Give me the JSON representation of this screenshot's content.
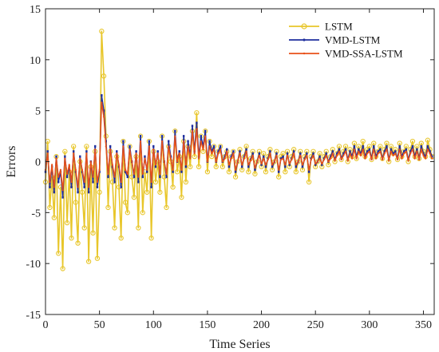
{
  "chart_data": {
    "type": "line",
    "title": "",
    "xlabel": "Time Series",
    "ylabel": "Errors",
    "xlim": [
      0,
      360
    ],
    "ylim": [
      -15,
      15
    ],
    "xticks": [
      0,
      50,
      100,
      150,
      200,
      250,
      300,
      350
    ],
    "yticks": [
      -15,
      -10,
      -5,
      0,
      5,
      10,
      15
    ],
    "grid": false,
    "legend": "top-right",
    "series": [
      {
        "name": "LSTM",
        "color": "#E8C62A",
        "marker": "circle",
        "x": [
          0,
          2,
          4,
          6,
          8,
          10,
          12,
          14,
          16,
          18,
          20,
          22,
          24,
          26,
          28,
          30,
          32,
          34,
          36,
          38,
          40,
          42,
          44,
          46,
          48,
          50,
          52,
          54,
          56,
          58,
          60,
          62,
          64,
          66,
          68,
          70,
          72,
          74,
          76,
          78,
          80,
          82,
          84,
          86,
          88,
          90,
          92,
          94,
          96,
          98,
          100,
          102,
          104,
          106,
          108,
          110,
          112,
          114,
          116,
          118,
          120,
          122,
          124,
          126,
          128,
          130,
          132,
          134,
          136,
          138,
          140,
          142,
          144,
          146,
          148,
          150,
          152,
          154,
          156,
          158,
          160,
          162,
          164,
          166,
          168,
          170,
          172,
          174,
          176,
          178,
          180,
          182,
          184,
          186,
          188,
          190,
          192,
          194,
          196,
          198,
          200,
          202,
          204,
          206,
          208,
          210,
          212,
          214,
          216,
          218,
          220,
          222,
          224,
          226,
          228,
          230,
          232,
          234,
          236,
          238,
          240,
          242,
          244,
          246,
          248,
          250,
          252,
          254,
          256,
          258,
          260,
          262,
          264,
          266,
          268,
          270,
          272,
          274,
          276,
          278,
          280,
          282,
          284,
          286,
          288,
          290,
          292,
          294,
          296,
          298,
          300,
          302,
          304,
          306,
          308,
          310,
          312,
          314,
          316,
          318,
          320,
          322,
          324,
          326,
          328,
          330,
          332,
          334,
          336,
          338,
          340,
          342,
          344,
          346,
          348,
          350,
          352,
          354,
          356,
          358
        ],
        "values": [
          -2.0,
          2.0,
          -4.5,
          -1.5,
          -5.5,
          0.5,
          -9.0,
          -2.5,
          -10.5,
          1.0,
          -6.0,
          -1.0,
          -7.5,
          1.5,
          -4.0,
          -8.0,
          0.0,
          -3.0,
          -6.5,
          1.5,
          -9.8,
          -0.5,
          -7.0,
          1.0,
          -9.5,
          -3.0,
          12.8,
          8.4,
          2.5,
          -4.5,
          1.0,
          -2.0,
          -6.5,
          0.5,
          -2.5,
          -7.5,
          2.0,
          -4.0,
          -5.0,
          1.5,
          -1.5,
          -3.5,
          0.5,
          -6.5,
          2.5,
          -5.0,
          -1.0,
          -3.0,
          2.0,
          -7.5,
          1.0,
          -2.0,
          0.0,
          -3.0,
          2.5,
          -1.5,
          -4.5,
          1.5,
          0.0,
          -2.5,
          3.0,
          -1.0,
          0.5,
          -3.5,
          2.0,
          -2.0,
          1.5,
          -0.5,
          3.0,
          0.5,
          4.8,
          -0.5,
          2.5,
          1.0,
          3.0,
          -1.0,
          2.0,
          0.5,
          1.5,
          -0.5,
          1.0,
          1.5,
          -0.5,
          0.5,
          1.0,
          -1.0,
          0.5,
          1.0,
          -1.5,
          0.0,
          1.2,
          -0.8,
          0.5,
          1.5,
          -1.0,
          0.3,
          1.0,
          -1.2,
          0.0,
          1.0,
          -0.5,
          0.8,
          -1.0,
          0.5,
          1.2,
          -0.8,
          0.0,
          1.0,
          -1.5,
          0.5,
          0.8,
          -1.0,
          1.0,
          -0.5,
          0.5,
          1.2,
          -1.0,
          0.0,
          1.0,
          -0.8,
          0.5,
          1.0,
          -2.0,
          0.5,
          1.0,
          -0.5,
          0.0,
          0.8,
          -0.5,
          0.5,
          1.0,
          -0.3,
          0.5,
          1.2,
          0.0,
          0.8,
          1.5,
          0.2,
          1.0,
          1.5,
          0.0,
          1.2,
          0.5,
          1.8,
          0.3,
          1.5,
          0.8,
          2.0,
          0.5,
          1.2,
          1.5,
          0.2,
          1.8,
          0.5,
          1.0,
          1.5,
          0.3,
          1.2,
          1.8,
          0.0,
          1.5,
          0.8,
          1.2,
          0.2,
          1.8,
          0.5,
          1.0,
          1.5,
          0.0,
          1.2,
          2.0,
          0.5,
          1.5,
          0.3,
          1.8,
          1.0,
          0.5,
          2.1,
          1.2,
          0.5
        ]
      },
      {
        "name": "VMD-LSTM",
        "color": "#1F2F9E",
        "marker": "tick",
        "x": [
          0,
          2,
          4,
          6,
          8,
          10,
          12,
          14,
          16,
          18,
          20,
          22,
          24,
          26,
          28,
          30,
          32,
          34,
          36,
          38,
          40,
          42,
          44,
          46,
          48,
          50,
          52,
          54,
          56,
          58,
          60,
          62,
          64,
          66,
          68,
          70,
          72,
          74,
          76,
          78,
          80,
          82,
          84,
          86,
          88,
          90,
          92,
          94,
          96,
          98,
          100,
          102,
          104,
          106,
          108,
          110,
          112,
          114,
          116,
          118,
          120,
          122,
          124,
          126,
          128,
          130,
          132,
          134,
          136,
          138,
          140,
          142,
          144,
          146,
          148,
          150,
          152,
          154,
          156,
          158,
          160,
          162,
          164,
          166,
          168,
          170,
          172,
          174,
          176,
          178,
          180,
          182,
          184,
          186,
          188,
          190,
          192,
          194,
          196,
          198,
          200,
          202,
          204,
          206,
          208,
          210,
          212,
          214,
          216,
          218,
          220,
          222,
          224,
          226,
          228,
          230,
          232,
          234,
          236,
          238,
          240,
          242,
          244,
          246,
          248,
          250,
          252,
          254,
          256,
          258,
          260,
          262,
          264,
          266,
          268,
          270,
          272,
          274,
          276,
          278,
          280,
          282,
          284,
          286,
          288,
          290,
          292,
          294,
          296,
          298,
          300,
          302,
          304,
          306,
          308,
          310,
          312,
          314,
          316,
          318,
          320,
          322,
          324,
          326,
          328,
          330,
          332,
          334,
          336,
          338,
          340,
          342,
          344,
          346,
          348,
          350,
          352,
          354,
          356,
          358
        ],
        "values": [
          -1.0,
          1.0,
          -2.5,
          -0.5,
          -3.0,
          0.5,
          -2.0,
          -1.0,
          -3.5,
          0.5,
          -1.5,
          -0.5,
          -2.5,
          1.0,
          -1.0,
          -3.0,
          0.5,
          -1.0,
          -2.5,
          1.0,
          -3.0,
          0.0,
          -2.0,
          1.5,
          -2.5,
          -1.0,
          6.5,
          5.0,
          2.0,
          -1.5,
          1.5,
          -0.5,
          -2.0,
          1.0,
          -0.5,
          -2.5,
          2.0,
          -1.0,
          -1.5,
          1.5,
          0.0,
          -1.5,
          1.0,
          -2.0,
          2.5,
          -1.5,
          0.5,
          -1.0,
          2.0,
          -2.5,
          1.5,
          -0.5,
          1.0,
          -1.5,
          2.5,
          0.0,
          -1.5,
          2.0,
          0.5,
          -1.0,
          3.0,
          0.0,
          1.0,
          -1.0,
          2.5,
          -0.5,
          2.0,
          0.5,
          3.5,
          1.0,
          3.8,
          0.5,
          2.5,
          1.5,
          3.0,
          0.0,
          2.0,
          1.0,
          1.5,
          0.0,
          1.0,
          1.5,
          0.0,
          0.5,
          1.2,
          -0.5,
          0.5,
          1.0,
          -1.0,
          0.0,
          1.0,
          -0.5,
          0.5,
          1.2,
          -0.5,
          0.2,
          0.8,
          -0.8,
          0.0,
          0.8,
          -0.3,
          0.5,
          -0.5,
          0.3,
          1.0,
          -0.5,
          0.0,
          0.8,
          -1.0,
          0.3,
          0.5,
          -0.5,
          0.8,
          -0.3,
          0.3,
          1.0,
          -0.5,
          0.0,
          0.8,
          -0.5,
          0.3,
          0.8,
          -1.0,
          0.3,
          0.8,
          -0.3,
          0.0,
          0.5,
          -0.3,
          0.3,
          0.8,
          0.0,
          0.5,
          1.0,
          0.2,
          0.8,
          1.2,
          0.3,
          0.8,
          1.2,
          0.2,
          1.0,
          0.5,
          1.5,
          0.5,
          1.2,
          0.8,
          1.5,
          0.5,
          1.0,
          1.2,
          0.3,
          1.5,
          0.5,
          1.0,
          1.2,
          0.3,
          1.0,
          1.5,
          0.2,
          1.2,
          0.8,
          1.0,
          0.3,
          1.5,
          0.5,
          1.0,
          1.2,
          0.2,
          1.0,
          1.5,
          0.5,
          1.2,
          0.3,
          1.5,
          0.8,
          0.5,
          1.5,
          1.0,
          0.5
        ]
      },
      {
        "name": "VMD-SSA-LSTM",
        "color": "#E8501A",
        "marker": "dot",
        "x": [
          0,
          2,
          4,
          6,
          8,
          10,
          12,
          14,
          16,
          18,
          20,
          22,
          24,
          26,
          28,
          30,
          32,
          34,
          36,
          38,
          40,
          42,
          44,
          46,
          48,
          50,
          52,
          54,
          56,
          58,
          60,
          62,
          64,
          66,
          68,
          70,
          72,
          74,
          76,
          78,
          80,
          82,
          84,
          86,
          88,
          90,
          92,
          94,
          96,
          98,
          100,
          102,
          104,
          106,
          108,
          110,
          112,
          114,
          116,
          118,
          120,
          122,
          124,
          126,
          128,
          130,
          132,
          134,
          136,
          138,
          140,
          142,
          144,
          146,
          148,
          150,
          152,
          154,
          156,
          158,
          160,
          162,
          164,
          166,
          168,
          170,
          172,
          174,
          176,
          178,
          180,
          182,
          184,
          186,
          188,
          190,
          192,
          194,
          196,
          198,
          200,
          202,
          204,
          206,
          208,
          210,
          212,
          214,
          216,
          218,
          220,
          222,
          224,
          226,
          228,
          230,
          232,
          234,
          236,
          238,
          240,
          242,
          244,
          246,
          248,
          250,
          252,
          254,
          256,
          258,
          260,
          262,
          264,
          266,
          268,
          270,
          272,
          274,
          276,
          278,
          280,
          282,
          284,
          286,
          288,
          290,
          292,
          294,
          296,
          298,
          300,
          302,
          304,
          306,
          308,
          310,
          312,
          314,
          316,
          318,
          320,
          322,
          324,
          326,
          328,
          330,
          332,
          334,
          336,
          338,
          340,
          342,
          344,
          346,
          348,
          350,
          352,
          354,
          356,
          358
        ],
        "values": [
          -0.8,
          0.8,
          -2.0,
          -0.3,
          -2.5,
          0.3,
          -1.5,
          -0.8,
          -2.8,
          0.3,
          -1.2,
          -0.3,
          -2.0,
          0.8,
          -0.8,
          -2.5,
          0.3,
          -0.8,
          -2.0,
          0.8,
          -2.5,
          0.0,
          -1.5,
          1.2,
          -2.0,
          -0.8,
          5.8,
          4.4,
          1.5,
          -1.2,
          1.2,
          -0.3,
          -1.5,
          0.8,
          -0.3,
          -2.0,
          1.5,
          -0.8,
          -1.2,
          1.2,
          0.0,
          -1.2,
          0.8,
          -1.5,
          2.0,
          -1.2,
          0.3,
          -0.8,
          1.5,
          -2.0,
          1.2,
          -0.3,
          0.8,
          -1.2,
          2.0,
          0.0,
          -1.2,
          1.5,
          0.3,
          -0.8,
          2.5,
          0.0,
          0.8,
          -0.8,
          2.0,
          -0.3,
          1.5,
          0.3,
          3.0,
          0.8,
          3.2,
          0.3,
          2.0,
          1.2,
          2.5,
          0.0,
          1.5,
          0.8,
          1.2,
          0.0,
          0.8,
          1.2,
          0.0,
          0.3,
          1.0,
          -0.3,
          0.3,
          0.8,
          -0.8,
          0.0,
          0.8,
          -0.3,
          0.3,
          1.0,
          -0.3,
          0.1,
          0.6,
          -0.6,
          0.0,
          0.6,
          -0.2,
          0.3,
          -0.3,
          0.2,
          0.8,
          -0.3,
          0.0,
          0.6,
          -0.8,
          0.2,
          0.3,
          -0.3,
          0.6,
          -0.2,
          0.2,
          0.8,
          -0.3,
          0.0,
          0.6,
          -0.3,
          0.2,
          0.6,
          -0.8,
          0.2,
          0.6,
          -0.2,
          0.0,
          0.3,
          -0.2,
          0.2,
          0.6,
          0.0,
          0.3,
          0.8,
          0.1,
          0.6,
          1.0,
          0.2,
          0.6,
          1.0,
          0.1,
          0.8,
          0.3,
          1.2,
          0.3,
          1.0,
          0.6,
          1.2,
          0.3,
          0.8,
          1.0,
          0.2,
          1.2,
          0.3,
          0.8,
          1.0,
          0.2,
          0.8,
          1.2,
          0.1,
          1.0,
          0.6,
          0.8,
          0.2,
          1.2,
          0.3,
          0.8,
          1.0,
          0.1,
          0.8,
          1.2,
          0.3,
          1.0,
          0.2,
          1.2,
          0.6,
          0.3,
          1.2,
          0.8,
          0.3
        ]
      }
    ]
  }
}
